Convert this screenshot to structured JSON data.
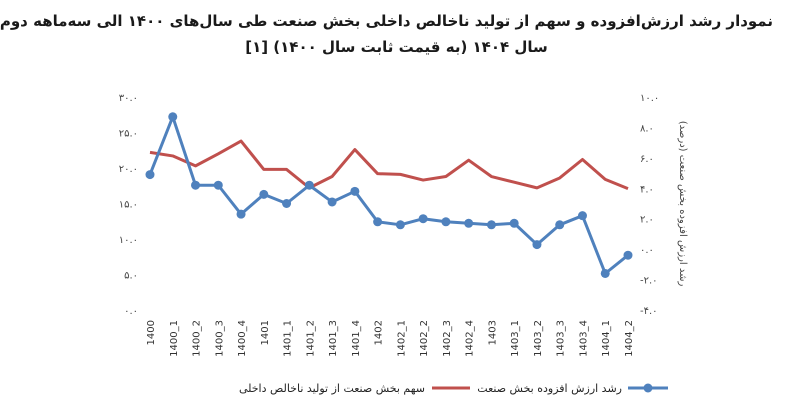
{
  "chart_data": {
    "type": "line",
    "title": "نمودار رشد ارزش‌افزوده و سهم از تولید ناخالص داخلی بخش صنعت طی سال‌های ۱۴۰۰ الی سه‌ماهه دوم",
    "subtitle": "سال ۱۴۰۴ (به قیمت ثابت سال ۱۴۰۰) [۱]",
    "categories": [
      "1400",
      "1400_1",
      "1400_2",
      "1400_3",
      "1400_4",
      "1401",
      "1401_1",
      "1401_2",
      "1401_3",
      "1401_4",
      "1402",
      "1402_1",
      "1402_2",
      "1402_3",
      "1402_4",
      "1403",
      "1403_1",
      "1403_2",
      "1403_3",
      "1403_4",
      "1404_1",
      "1404_2"
    ],
    "y_left": {
      "ticks": [
        "۰.۰",
        "۵.۰",
        "۱۰.۰",
        "۱۵.۰",
        "۲۰.۰",
        "۲۵.۰",
        "۳۰.۰"
      ],
      "min": 0,
      "max": 30
    },
    "y_right": {
      "ticks": [
        "-۴.۰",
        "-۲.۰",
        "۰.۰",
        "۲.۰",
        "۴.۰",
        "۶.۰",
        "۸.۰",
        "۱۰.۰"
      ],
      "min": -4,
      "max": 10,
      "label": "رشد ارزش افزوده بخش صنعت (درصد)"
    },
    "series": [
      {
        "name": "سهم بخش صنعت از تولید ناخالص داخلی",
        "axis": "left",
        "color": "#c0504d",
        "values": [
          22.2,
          21.7,
          20.3,
          22.0,
          23.8,
          19.8,
          19.8,
          17.2,
          18.8,
          22.6,
          19.2,
          19.1,
          18.3,
          18.8,
          21.1,
          18.8,
          18.0,
          17.2,
          18.6,
          21.2,
          18.4,
          17.1
        ]
      },
      {
        "name": "رشد ارزش  افزوده بخش صنعت",
        "axis": "right",
        "color": "#4f81bd",
        "values": [
          4.9,
          8.7,
          4.2,
          4.2,
          2.3,
          3.6,
          3.0,
          4.2,
          3.1,
          3.8,
          1.8,
          1.6,
          2.0,
          1.8,
          1.7,
          1.6,
          1.7,
          0.3,
          1.6,
          2.2,
          -1.6,
          -0.4
        ]
      }
    ],
    "legend_position": "bottom",
    "grid": false
  }
}
